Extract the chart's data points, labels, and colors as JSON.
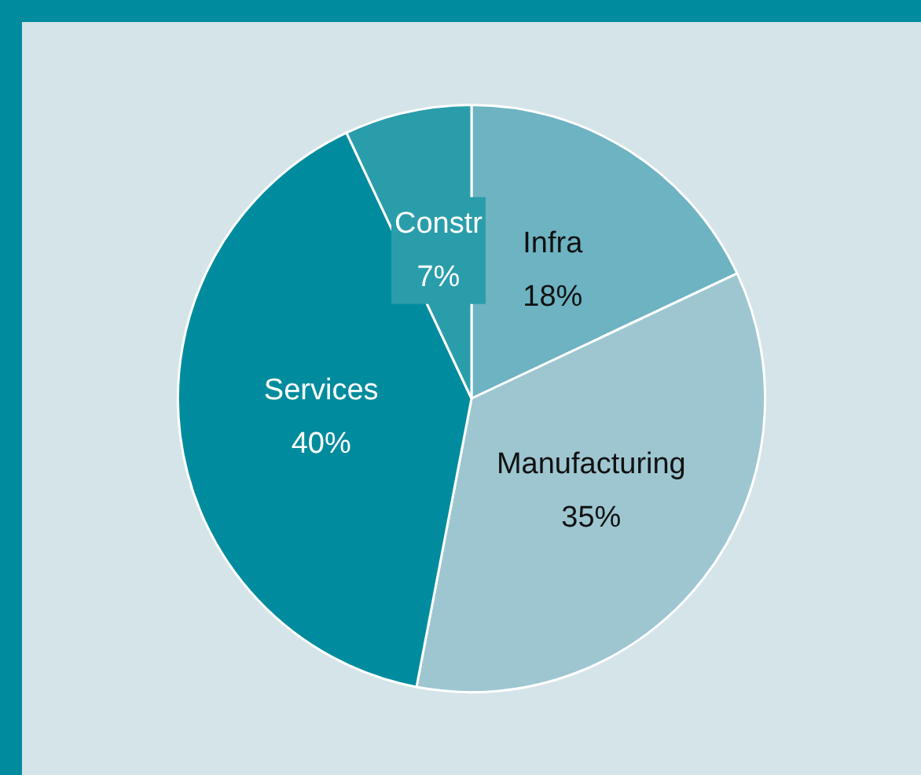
{
  "chart_data": {
    "type": "pie",
    "categories": [
      "Infra",
      "Manufacturing",
      "Services",
      "Constr"
    ],
    "values": [
      18,
      35,
      40,
      7
    ],
    "colors": [
      "#6db3c2",
      "#9dc6d1",
      "#008c9e",
      "#2a9dab"
    ],
    "value_labels": [
      "18%",
      "35%",
      "40%",
      "7%"
    ],
    "legend": false
  }
}
